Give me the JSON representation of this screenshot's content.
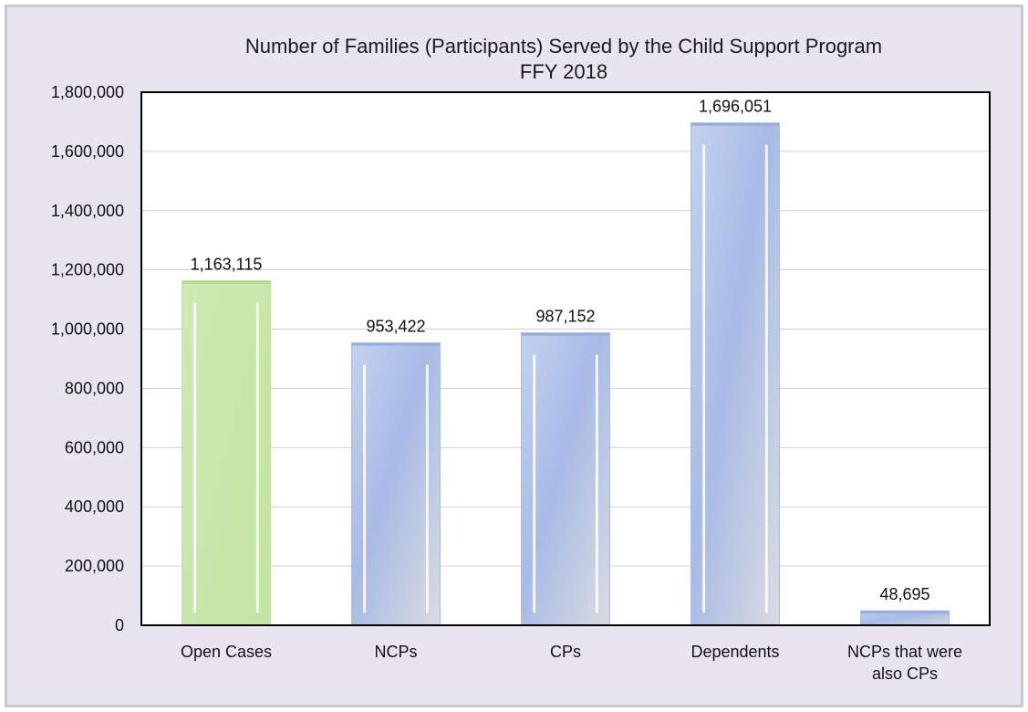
{
  "chart_data": {
    "type": "bar",
    "title": "Number of Families (Participants) Served by the Child Support Program",
    "subtitle": "FFY 2018",
    "categories": [
      "Open Cases",
      "NCPs",
      "CPs",
      "Dependents",
      "NCPs that were also CPs"
    ],
    "category_lines": [
      [
        "Open Cases"
      ],
      [
        "NCPs"
      ],
      [
        "CPs"
      ],
      [
        "Dependents"
      ],
      [
        "NCPs that were",
        "also CPs"
      ]
    ],
    "values": [
      1163115,
      953422,
      987152,
      1696051,
      48695
    ],
    "value_labels": [
      "1,163,115",
      "953,422",
      "987,152",
      "1,696,051",
      "48,695"
    ],
    "bar_colors": [
      "#c6e6a8",
      "#aabde6",
      "#aabde6",
      "#aabde6",
      "#aabde6"
    ],
    "ylim": [
      0,
      1800000
    ],
    "y_ticks": [
      0,
      200000,
      400000,
      600000,
      800000,
      1000000,
      1200000,
      1400000,
      1600000,
      1800000
    ],
    "y_tick_labels": [
      "0",
      "200,000",
      "400,000",
      "600,000",
      "800,000",
      "1,000,000",
      "1,200,000",
      "1,400,000",
      "1,600,000",
      "1,800,000"
    ],
    "xlabel": "",
    "ylabel": "",
    "grid": true,
    "legend": "none"
  }
}
